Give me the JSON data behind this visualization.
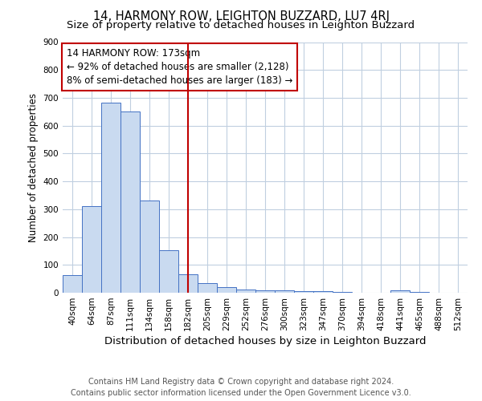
{
  "title1": "14, HARMONY ROW, LEIGHTON BUZZARD, LU7 4RJ",
  "title2": "Size of property relative to detached houses in Leighton Buzzard",
  "xlabel": "Distribution of detached houses by size in Leighton Buzzard",
  "ylabel": "Number of detached properties",
  "footer1": "Contains HM Land Registry data © Crown copyright and database right 2024.",
  "footer2": "Contains public sector information licensed under the Open Government Licence v3.0.",
  "categories": [
    "40sqm",
    "64sqm",
    "87sqm",
    "111sqm",
    "134sqm",
    "158sqm",
    "182sqm",
    "205sqm",
    "229sqm",
    "252sqm",
    "276sqm",
    "300sqm",
    "323sqm",
    "347sqm",
    "370sqm",
    "394sqm",
    "418sqm",
    "441sqm",
    "465sqm",
    "488sqm",
    "512sqm"
  ],
  "values": [
    62,
    310,
    683,
    650,
    330,
    152,
    65,
    35,
    20,
    12,
    8,
    8,
    5,
    5,
    2,
    1,
    1,
    8,
    2,
    1,
    0
  ],
  "bar_color": "#c9daf0",
  "bar_edge_color": "#4472c4",
  "vline_index": 6,
  "vline_color": "#c00000",
  "annotation_text": "14 HARMONY ROW: 173sqm\n← 92% of detached houses are smaller (2,128)\n8% of semi-detached houses are larger (183) →",
  "annotation_box_edge": "#c00000",
  "ylim": [
    0,
    900
  ],
  "yticks": [
    0,
    100,
    200,
    300,
    400,
    500,
    600,
    700,
    800,
    900
  ],
  "grid_color": "#c0cfe0",
  "title1_fontsize": 10.5,
  "title2_fontsize": 9.5,
  "xlabel_fontsize": 9.5,
  "ylabel_fontsize": 8.5,
  "annotation_fontsize": 8.5,
  "footer_fontsize": 7.0,
  "tick_fontsize": 7.5
}
